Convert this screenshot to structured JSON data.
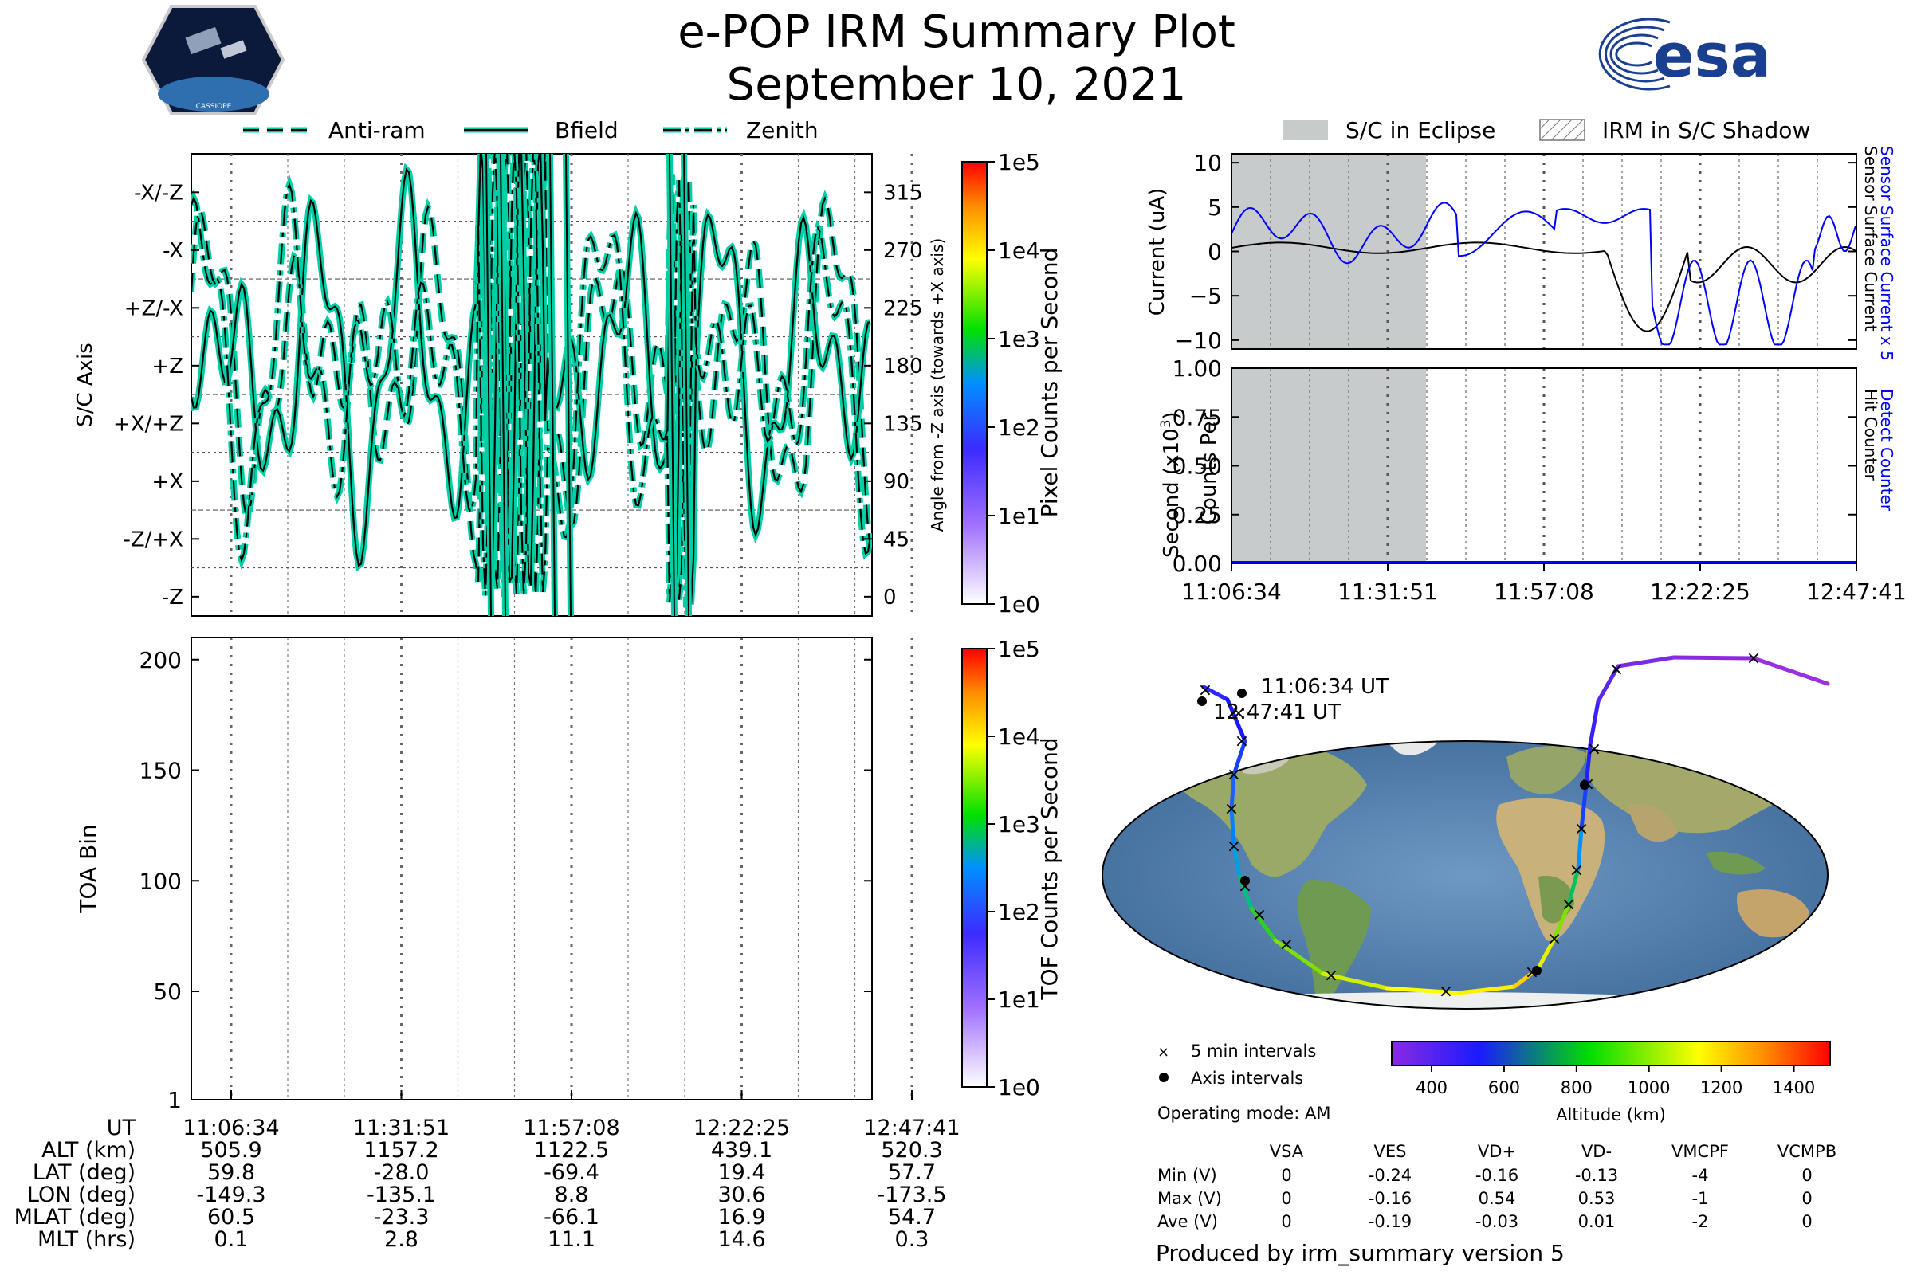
{
  "header": {
    "title": "e-POP IRM Summary Plot",
    "date": "September 10, 2021",
    "logo_left_text": "CASSIOPE",
    "logo_right_text": "esa"
  },
  "colors": {
    "line_primary": "#00cfa6",
    "line_edge": "#000000",
    "eclipse": "#c8cbcb",
    "detect_blue": "#0000ff",
    "track_low": "#8a2be2",
    "track_high": "#ff2a00"
  },
  "legend_top": {
    "items": [
      {
        "label": "Anti-ram",
        "style": "dashed"
      },
      {
        "label": "Bfield",
        "style": "solid"
      },
      {
        "label": "Zenith",
        "style": "dashdot"
      }
    ]
  },
  "legend_eclipse": {
    "items": [
      {
        "label": "S/C in Eclipse",
        "style": "grey-fill"
      },
      {
        "label": "IRM in S/C Shadow",
        "style": "hatched"
      }
    ]
  },
  "chart_data": [
    {
      "type": "line",
      "name": "axis-panel",
      "ylabel": "S/C Axis",
      "y2label": "Angle from -Z axis (towards +X axis)",
      "ytick_labels": [
        "-X/-Z",
        "-X",
        "+Z/-X",
        "+Z",
        "+X/+Z",
        "+X",
        "-Z/+X",
        "-Z"
      ],
      "y2tick_labels": [
        "315",
        "270",
        "225",
        "180",
        "135",
        "90",
        "45",
        "0"
      ],
      "ylim": [
        -15,
        345
      ],
      "xtick_labels": [
        "11:06:34",
        "11:31:51",
        "11:57:08",
        "12:22:25",
        "12:47:41"
      ],
      "grid": true,
      "colorbar": {
        "label": "Pixel Counts per Second",
        "ticks": [
          "1e5",
          "1e4",
          "1e3",
          "1e2",
          "1e1",
          "1e0"
        ]
      }
    },
    {
      "type": "heatmap",
      "name": "toa-panel",
      "ylabel": "TOA Bin",
      "yticks": [
        "200",
        "150",
        "100",
        "50",
        "1"
      ],
      "ylim": [
        1,
        210
      ],
      "xtick_labels": [
        "11:06:34",
        "11:31:51",
        "11:57:08",
        "12:22:25",
        "12:47:41"
      ],
      "colorbar": {
        "label": "TOF Counts per Second",
        "ticks": [
          "1e5",
          "1e4",
          "1e3",
          "1e2",
          "1e1",
          "1e0"
        ]
      }
    },
    {
      "type": "line",
      "name": "current-panel",
      "ylabel": "Current (uA)",
      "yticks": [
        "10",
        "5",
        "0",
        "−5",
        "−10"
      ],
      "ylim": [
        -11,
        11
      ],
      "right_labels": [
        {
          "text": "Sensor Surface Current x 5",
          "color": "#0000ff"
        },
        {
          "text": "Sensor Surface Current",
          "color": "#000000"
        }
      ],
      "eclipse_interval": [
        "11:06:34",
        "11:39:30"
      ]
    },
    {
      "type": "line",
      "name": "counts-panel",
      "ylabel": "Counts Per Second (x10³)",
      "ylabel_line1": "Counts Per",
      "ylabel_line2": "Second (x10",
      "ylabel_sup": "3",
      "ylabel_close": ")",
      "yticks": [
        "1.00",
        "0.75",
        "0.50",
        "0.25",
        "0.00"
      ],
      "ylim": [
        0,
        1
      ],
      "right_labels": [
        {
          "text": "Detect Counter",
          "color": "#0000ff"
        },
        {
          "text": "Hit Counter",
          "color": "#000000"
        }
      ],
      "xtick_labels": [
        "11:06:34",
        "11:31:51",
        "11:57:08",
        "12:22:25",
        "12:47:41"
      ]
    }
  ],
  "map": {
    "start_label": "11:06:34 UT",
    "end_label": "12:47:41 UT",
    "legend": {
      "five_min": "5 min intervals",
      "axis": "Axis intervals"
    },
    "operating_mode": "Operating mode: AM",
    "altitude_bar": {
      "label": "Altitude (km)",
      "ticks": [
        "400",
        "600",
        "800",
        "1000",
        "1200",
        "1400"
      ]
    }
  },
  "ephemeris": {
    "row_labels": [
      "UT",
      "ALT (km)",
      "LAT (deg)",
      "LON (deg)",
      "MLAT (deg)",
      "MLT (hrs)"
    ],
    "columns": [
      [
        "11:06:34",
        "505.9",
        "59.8",
        "-149.3",
        "60.5",
        "0.1"
      ],
      [
        "11:31:51",
        "1157.2",
        "-28.0",
        "-135.1",
        "-23.3",
        "2.8"
      ],
      [
        "11:57:08",
        "1122.5",
        "-69.4",
        "8.8",
        "-66.1",
        "11.1"
      ],
      [
        "12:22:25",
        "439.1",
        "19.4",
        "30.6",
        "16.9",
        "14.6"
      ],
      [
        "12:47:41",
        "520.3",
        "57.7",
        "-173.5",
        "54.7",
        "0.3"
      ]
    ]
  },
  "voltage_table": {
    "headers": [
      "VSA",
      "VES",
      "VD+",
      "VD-",
      "VMCPF",
      "VCMPB"
    ],
    "rows": [
      {
        "label": "Min (V)",
        "values": [
          "0",
          "-0.24",
          "-0.16",
          "-0.13",
          "-4",
          "0"
        ]
      },
      {
        "label": "Max (V)",
        "values": [
          "0",
          "-0.16",
          "0.54",
          "0.53",
          "-1",
          "0"
        ]
      },
      {
        "label": "Ave (V)",
        "values": [
          "0",
          "-0.19",
          "-0.03",
          "0.01",
          "-2",
          "0"
        ]
      }
    ]
  },
  "footer": {
    "produced_by": "Produced by irm_summary version 5"
  }
}
